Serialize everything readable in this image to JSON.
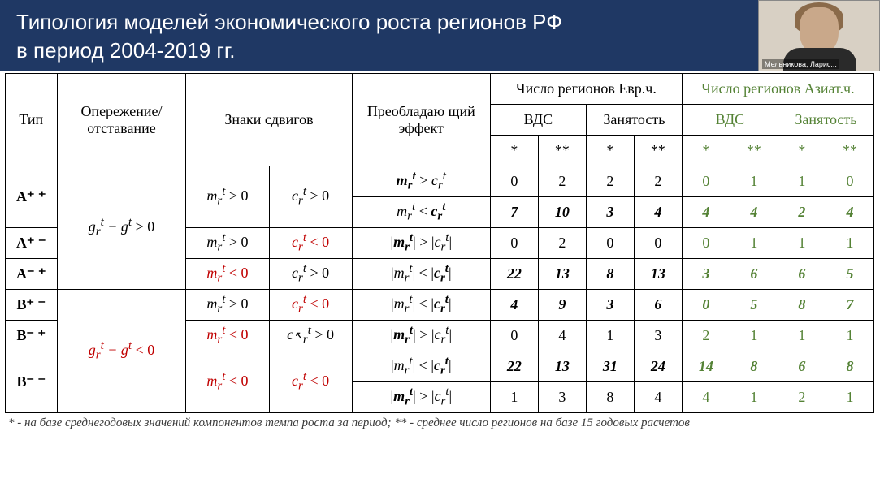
{
  "header": {
    "line1": "Типология моделей экономического роста регионов РФ",
    "line2": " в период 2004-2019 гг."
  },
  "webcam_label": "Мельникова, Ларис...",
  "col_headers": {
    "type": "Тип",
    "lead_lag": "Опережение/ отставание",
    "sign_shifts": "Знаки сдвигов",
    "prevailing_effect": "Преобладаю щий эффект",
    "region_count_euro": "Число регионов Евр.ч.",
    "region_count_asia": "Число регионов Азиат.ч.",
    "vds": "ВДС",
    "employment": "Занятость",
    "star1": "*",
    "star2": "**"
  },
  "formula": {
    "g_pos": "gᵣᵗ − gᵗ > 0",
    "g_neg": "gᵣᵗ − gᵗ < 0",
    "m_pos": "mᵣᵗ > 0",
    "m_neg": "mᵣᵗ < 0",
    "c_pos": "cᵣᵗ > 0",
    "c_neg": "cᵣᵗ < 0",
    "mr_gt_cr": "𝒎ᵣᵗ > cᵣᵗ",
    "mr_lt_cr": "mᵣᵗ < 𝒄ᵣᵗ",
    "abs_mr_gt_abs_cr": "|𝒎ᵣᵗ| > |cᵣᵗ|",
    "abs_mr_lt_abs_cr": "|mᵣᵗ| < |𝒄ᵣᵗ|"
  },
  "types": {
    "App": "A⁺ ⁺",
    "Apm": "A⁺ ⁻",
    "Amp": "A⁻ ⁺",
    "Bpm": "B⁺ ⁻",
    "Bmp": "B⁻ ⁺",
    "Bmm": "B⁻ ⁻"
  },
  "rows": [
    {
      "euro_vds": [
        "0",
        "2"
      ],
      "euro_emp": [
        "2",
        "2"
      ],
      "asia_vds": [
        "0",
        "1"
      ],
      "asia_emp": [
        "1",
        "0"
      ],
      "bold": false
    },
    {
      "euro_vds": [
        "7",
        "10"
      ],
      "euro_emp": [
        "3",
        "4"
      ],
      "asia_vds": [
        "4",
        "4"
      ],
      "asia_emp": [
        "2",
        "4"
      ],
      "bold": true
    },
    {
      "euro_vds": [
        "0",
        "2"
      ],
      "euro_emp": [
        "0",
        "0"
      ],
      "asia_vds": [
        "0",
        "1"
      ],
      "asia_emp": [
        "1",
        "1"
      ],
      "bold": false
    },
    {
      "euro_vds": [
        "22",
        "13"
      ],
      "euro_emp": [
        "8",
        "13"
      ],
      "asia_vds": [
        "3",
        "6"
      ],
      "asia_emp": [
        "6",
        "5"
      ],
      "bold": true
    },
    {
      "euro_vds": [
        "4",
        "9"
      ],
      "euro_emp": [
        "3",
        "6"
      ],
      "asia_vds": [
        "0",
        "5"
      ],
      "asia_emp": [
        "8",
        "7"
      ],
      "bold": true
    },
    {
      "euro_vds": [
        "0",
        "4"
      ],
      "euro_emp": [
        "1",
        "3"
      ],
      "asia_vds": [
        "2",
        "1"
      ],
      "asia_emp": [
        "1",
        "1"
      ],
      "bold": false
    },
    {
      "euro_vds": [
        "22",
        "13"
      ],
      "euro_emp": [
        "31",
        "24"
      ],
      "asia_vds": [
        "14",
        "8"
      ],
      "asia_emp": [
        "6",
        "8"
      ],
      "bold": true
    },
    {
      "euro_vds": [
        "1",
        "3"
      ],
      "euro_emp": [
        "8",
        "4"
      ],
      "asia_vds": [
        "4",
        "1"
      ],
      "asia_emp": [
        "2",
        "1"
      ],
      "bold": false
    }
  ],
  "footnote": "* - на базе среднегодовых значений компонентов темпа роста за период; ** - среднее число регионов на базе 15 годовых расчетов",
  "colors": {
    "header_bg": "#1f3864",
    "green": "#548235",
    "red": "#c00000",
    "black": "#000000"
  }
}
